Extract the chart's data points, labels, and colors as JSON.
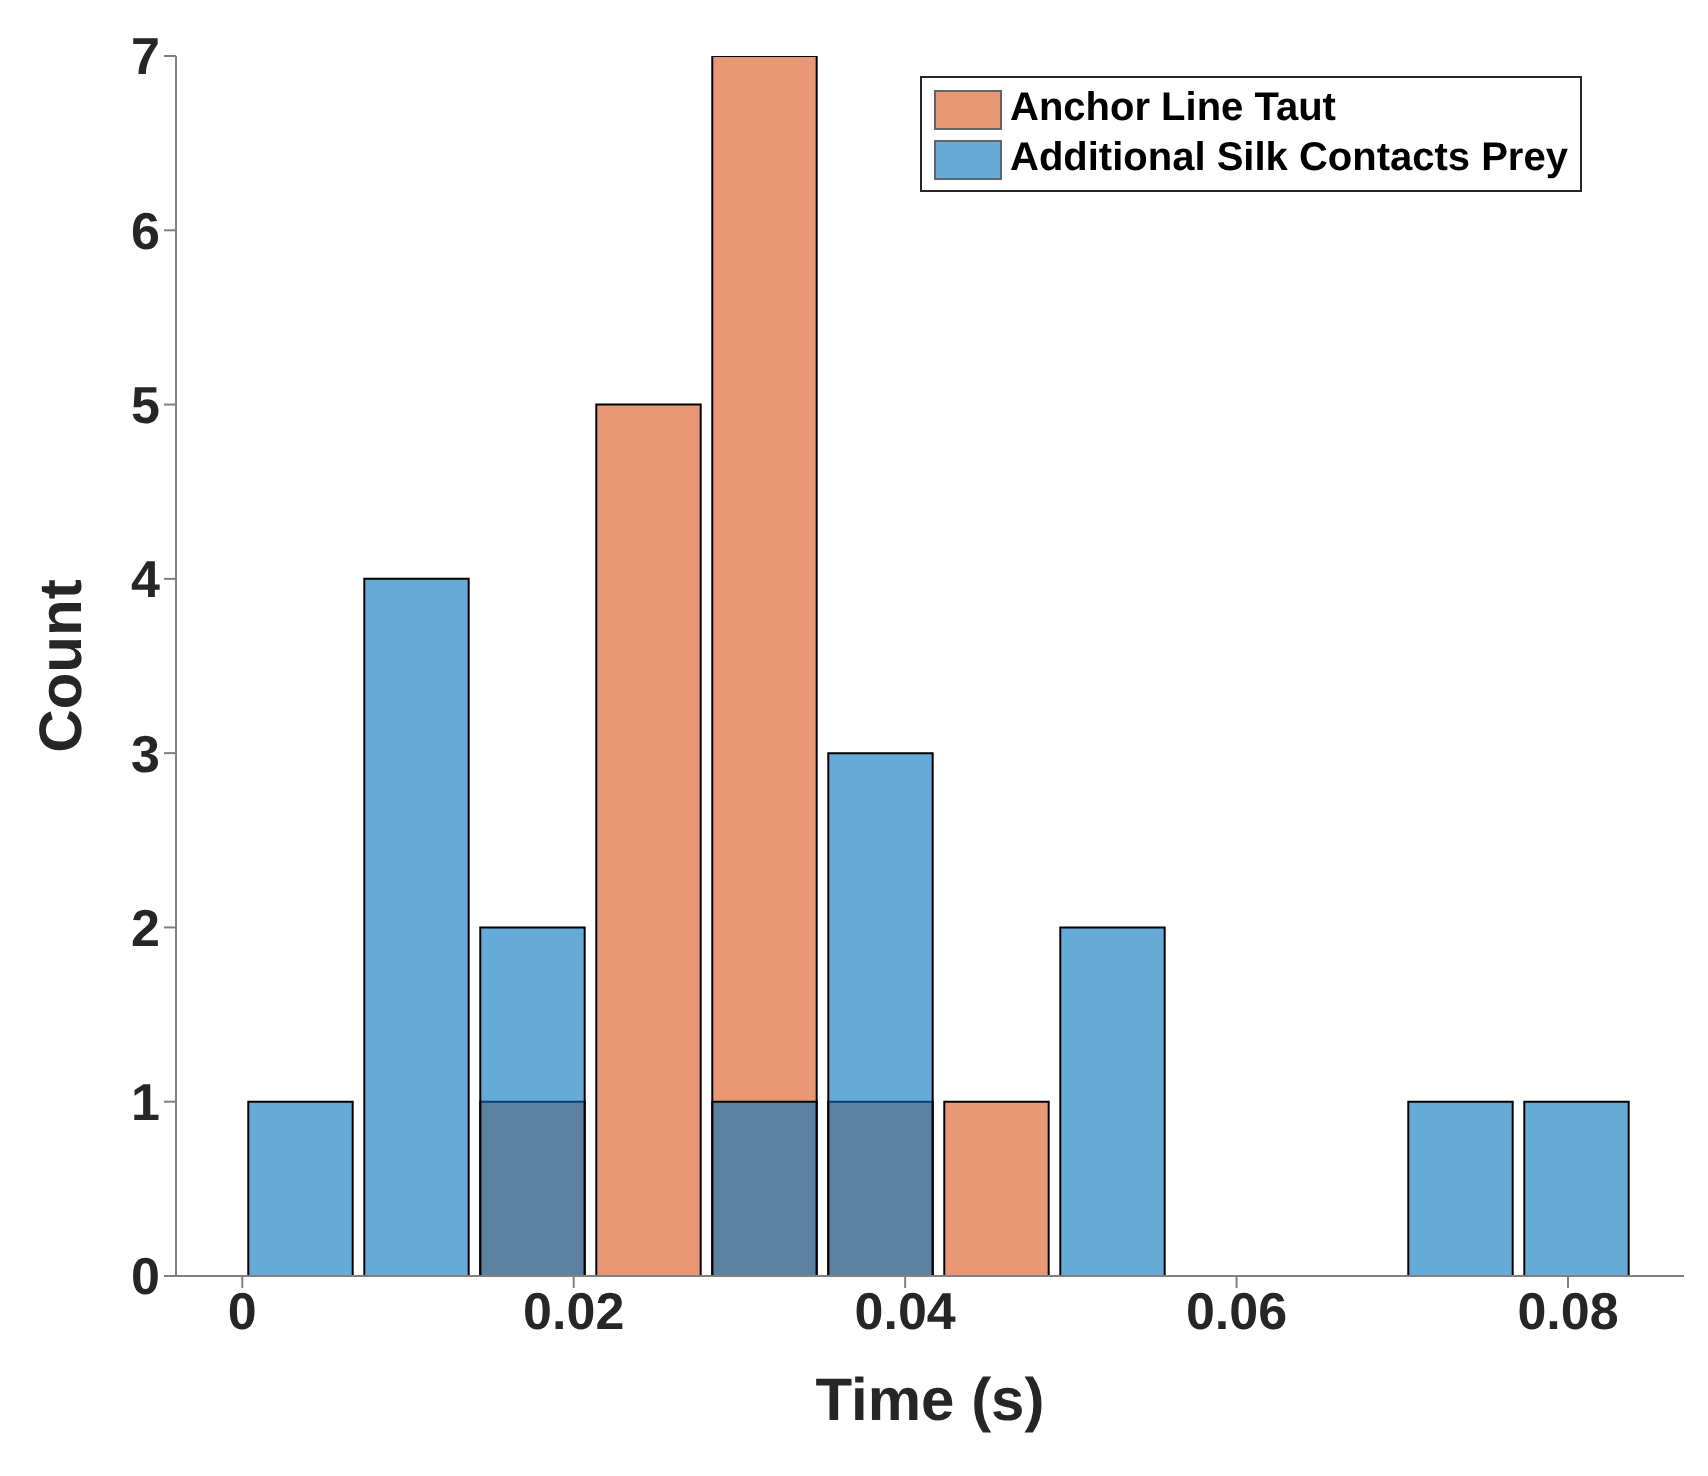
{
  "chart_data": {
    "type": "histogram",
    "xlabel": "Time (s)",
    "ylabel": "Count",
    "bins": [
      0,
      0.007,
      0.014,
      0.021,
      0.028,
      0.035,
      0.042,
      0.049,
      0.056,
      0.063,
      0.07,
      0.077,
      0.084
    ],
    "series": [
      {
        "name": "Anchor Line Taut",
        "color": "#d95319",
        "values": [
          0,
          0,
          1,
          5,
          7,
          1,
          1,
          0,
          0,
          0,
          0,
          0
        ]
      },
      {
        "name": "Additional Silk Contacts Prey",
        "color": "#0072bd",
        "values": [
          1,
          4,
          2,
          0,
          1,
          3,
          0,
          2,
          0,
          0,
          1,
          1
        ]
      }
    ],
    "xlim": [
      -0.004,
      0.087
    ],
    "xticks": [
      0,
      0.02,
      0.04,
      0.06,
      0.08
    ],
    "ylim": [
      0,
      7
    ],
    "yticks": [
      0,
      1,
      2,
      3,
      4,
      5,
      6,
      7
    ],
    "grid": false,
    "legend": "top right"
  }
}
